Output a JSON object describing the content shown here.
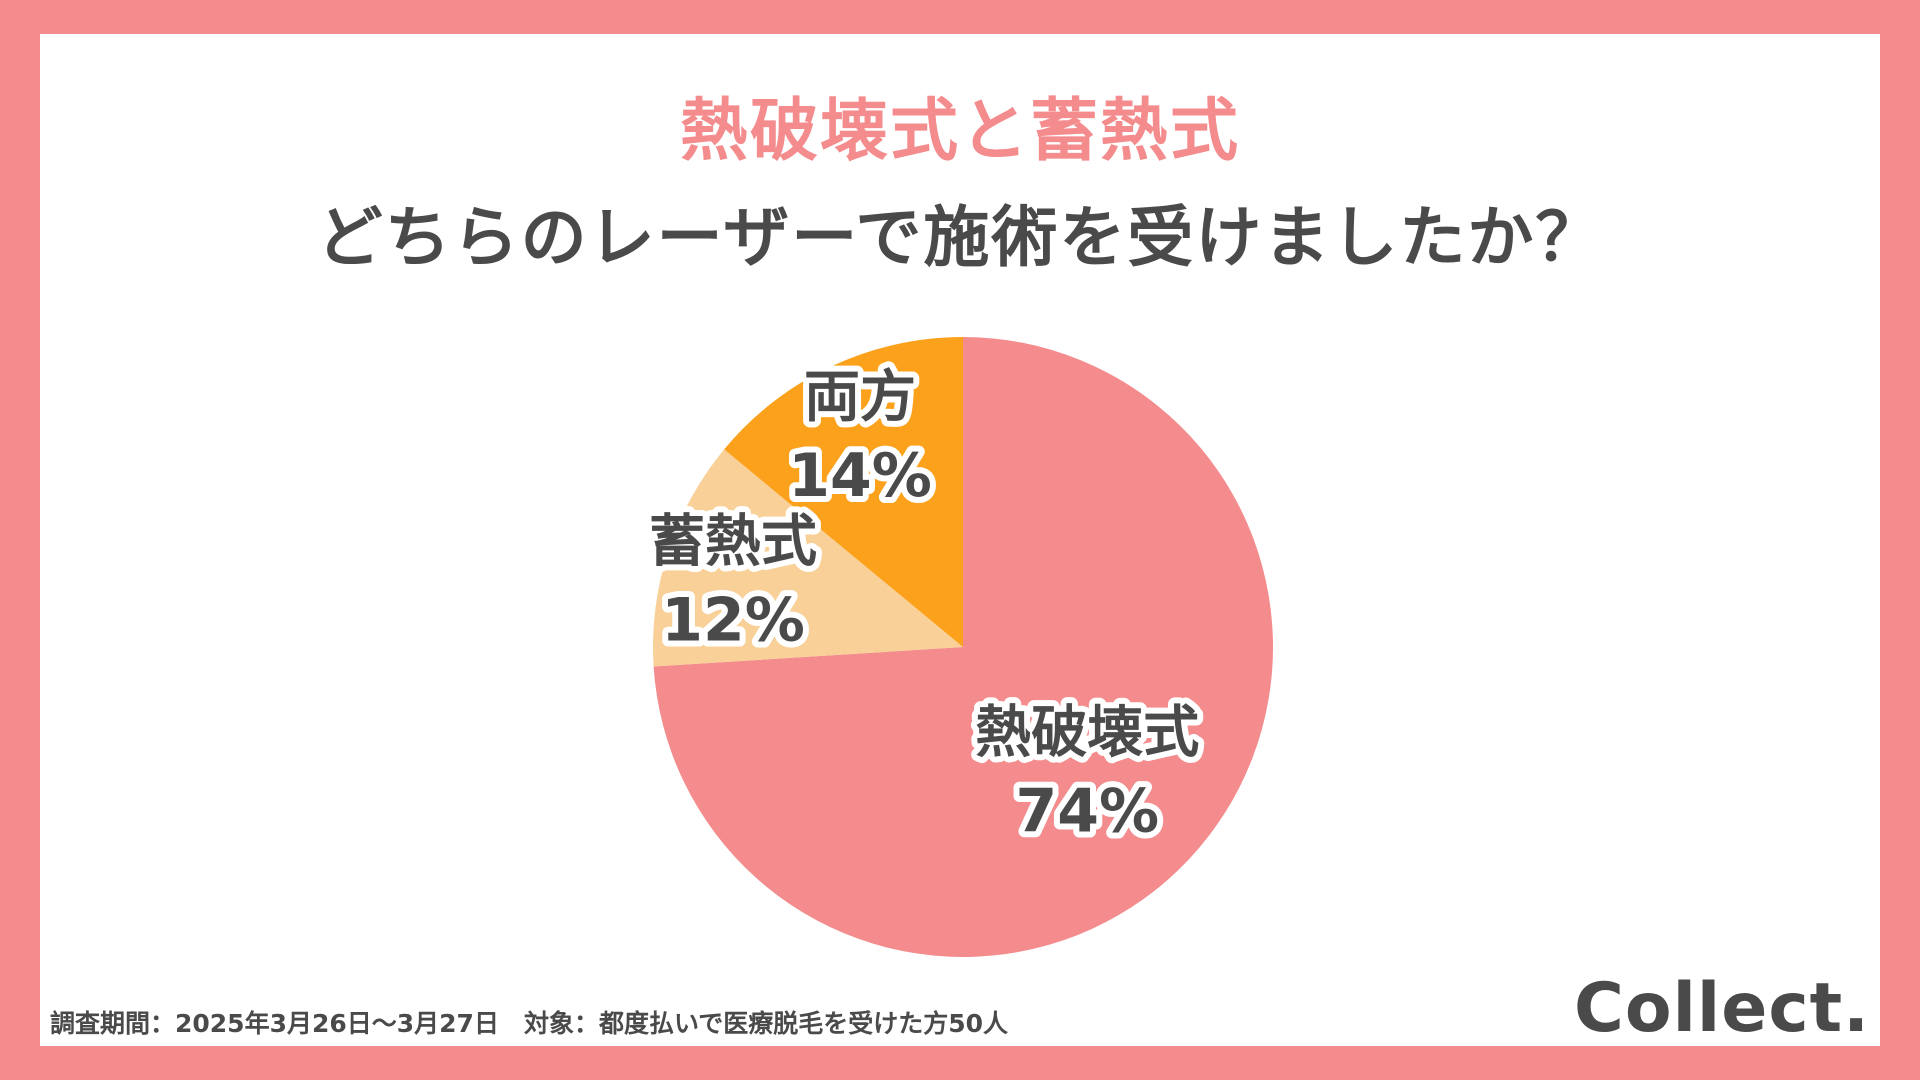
{
  "colors": {
    "background_border": "#f48b8c",
    "title_accent": "#f48b8c",
    "text_dark": "#4a4a4a"
  },
  "title": {
    "line1": "熱破壊式と蓄熱式",
    "line2": "どちらのレーザーで施術を受けましたか？"
  },
  "chart_data": {
    "type": "pie",
    "start_angle_deg": 0,
    "direction": "clockwise",
    "slices": [
      {
        "label": "熱破壊式",
        "value": 74,
        "value_label": "74%",
        "color": "#f48b8c"
      },
      {
        "label": "蓄熱式",
        "value": 12,
        "value_label": "12%",
        "color": "#f9d198"
      },
      {
        "label": "両方",
        "value": 14,
        "value_label": "14%",
        "color": "#fba11b"
      }
    ]
  },
  "footer": {
    "note": "調査期間：2025年3月26日〜3月27日　対象：都度払いで医療脱毛を受けた方50人",
    "brand": "Collect."
  }
}
